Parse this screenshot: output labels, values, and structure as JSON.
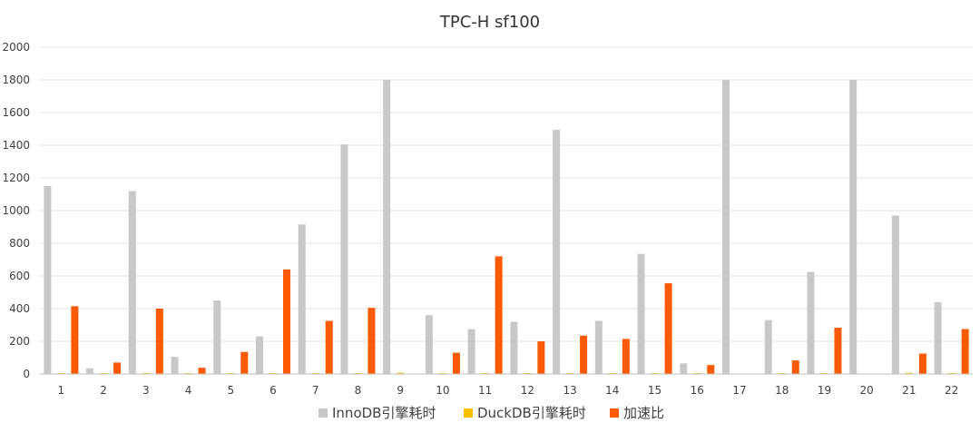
{
  "chart_data": {
    "type": "bar",
    "title": "TPC-H sf100",
    "xlabel": "",
    "ylabel": "",
    "ylim": [
      0,
      2000
    ],
    "yticks": [
      0,
      200,
      400,
      600,
      800,
      1000,
      1200,
      1400,
      1600,
      1800,
      2000
    ],
    "grid": true,
    "legend_position": "bottom",
    "categories": [
      "1",
      "2",
      "3",
      "4",
      "5",
      "6",
      "7",
      "8",
      "9",
      "10",
      "11",
      "12",
      "13",
      "14",
      "15",
      "16",
      "17",
      "18",
      "19",
      "20",
      "21",
      "22"
    ],
    "series": [
      {
        "name": "InnoDB引擎耗时",
        "color": "#c8c8c8",
        "values": [
          1150,
          35,
          1120,
          105,
          450,
          230,
          915,
          1405,
          1800,
          360,
          275,
          320,
          1495,
          325,
          735,
          65,
          1800,
          330,
          625,
          1800,
          970,
          440
        ]
      },
      {
        "name": "DuckDB引擎耗时",
        "color": "#ffc000",
        "values": [
          1,
          1,
          1,
          1,
          1,
          1,
          1,
          2,
          8,
          1,
          1,
          1,
          4,
          1,
          1,
          1,
          0,
          3,
          1,
          0,
          7,
          1
        ]
      },
      {
        "name": "加速比",
        "color": "#ff5a00",
        "values": [
          415,
          70,
          400,
          38,
          135,
          640,
          325,
          405,
          null,
          130,
          720,
          200,
          235,
          215,
          555,
          55,
          null,
          83,
          283,
          null,
          125,
          275
        ]
      }
    ]
  }
}
